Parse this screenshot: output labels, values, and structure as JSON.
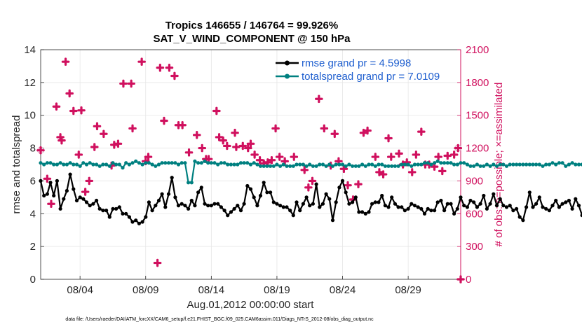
{
  "chart_data": {
    "type": "line",
    "title": "Tropics 146655 / 146764 = 99.926%",
    "subtitle": "SAT_V_WIND_COMPONENT @ 150 hPa",
    "xlabel": "Aug.01,2012 00:00:00 start",
    "ylabel": "rmse and totalspread",
    "y2label": "# of obs: o=possible; ×=assimilated",
    "footnote": "data file: /Users/raeder/DAI/ATM_forcXX/CAM6_setup/f.e21.FHIST_BGC.f09_025.CAM6assim.011/Diags_NTrS_2012-08/obs_diag_output.nc",
    "xlim": [
      0,
      32
    ],
    "ylim": [
      0,
      14
    ],
    "y2lim": [
      0,
      2100
    ],
    "x_tick_positions": [
      3,
      8,
      13,
      18,
      23,
      28
    ],
    "x_tick_labels": [
      "08/04",
      "08/09",
      "08/14",
      "08/19",
      "08/24",
      "08/29"
    ],
    "y_ticks": [
      0,
      2,
      4,
      6,
      8,
      10,
      12,
      14
    ],
    "y2_ticks": [
      0,
      300,
      600,
      900,
      1200,
      1500,
      1800,
      2100
    ],
    "grid": true,
    "legend_position": "top-right",
    "series": [
      {
        "name": "rmse grand pr = 4.5998",
        "color": "#000000",
        "axis": "left",
        "x_start": 0.0,
        "x_step": 0.25,
        "values": [
          6.0,
          5.1,
          5.2,
          5.9,
          5.1,
          6.0,
          4.3,
          4.9,
          5.4,
          6.4,
          5.5,
          4.8,
          5.0,
          4.9,
          4.7,
          4.5,
          4.6,
          4.8,
          4.3,
          4.2,
          4.2,
          3.8,
          4.3,
          4.3,
          4.4,
          4.0,
          4.0,
          3.8,
          3.5,
          3.6,
          3.4,
          3.5,
          3.8,
          4.7,
          4.2,
          4.5,
          4.8,
          5.2,
          4.4,
          5.2,
          6.2,
          5.0,
          4.5,
          4.6,
          4.5,
          4.3,
          4.8,
          4.5,
          5.3,
          5.6,
          4.6,
          4.5,
          4.5,
          4.6,
          4.6,
          4.4,
          4.2,
          3.9,
          4.1,
          4.3,
          4.5,
          4.2,
          4.6,
          5.7,
          5.5,
          5.0,
          4.5,
          5.1,
          5.9,
          5.3,
          5.3,
          4.7,
          4.6,
          4.5,
          4.4,
          4.4,
          4.2,
          3.9,
          4.7,
          4.2,
          4.6,
          5.0,
          4.5,
          4.6,
          5.8,
          4.4,
          4.6,
          5.2,
          4.9,
          3.6,
          4.7,
          5.6,
          6.0,
          5.3,
          4.6,
          4.7,
          5.0,
          4.1,
          4.1,
          4.0,
          4.1,
          4.6,
          4.7,
          4.7,
          5.1,
          4.5,
          4.4,
          5.0,
          4.6,
          4.4,
          4.4,
          4.2,
          4.3,
          4.6,
          4.5,
          4.4,
          4.3,
          4.0,
          4.3,
          4.2,
          4.2,
          4.7,
          4.8,
          4.2,
          4.6,
          4.6,
          4.0,
          4.3,
          5.0,
          4.5,
          4.4,
          4.8,
          4.7,
          4.4,
          4.6,
          5.1,
          4.3,
          4.6,
          5.2,
          4.5,
          4.9,
          4.5,
          4.4,
          4.5,
          4.2,
          4.3,
          3.8,
          3.6,
          4.4,
          5.3,
          4.4,
          4.6,
          5.0,
          4.4,
          4.3,
          4.2,
          4.5,
          4.8,
          4.4,
          4.6,
          4.7,
          4.8,
          4.3,
          4.9,
          4.5,
          3.9,
          4.4,
          4.2,
          4.5,
          4.7,
          4.1,
          4.4,
          4.2,
          4.3,
          4.2,
          3.9,
          4.5,
          4.5,
          4.6,
          4.2,
          4.4,
          4.6,
          4.7
        ]
      },
      {
        "name": "totalspread grand pr = 7.0109",
        "color": "#008080",
        "axis": "left",
        "x_start": 0.0,
        "x_step": 0.25,
        "values": [
          7.1,
          7.0,
          7.1,
          7.1,
          7.0,
          7.0,
          7.1,
          7.0,
          7.0,
          7.1,
          7.0,
          7.0,
          6.9,
          7.1,
          7.0,
          7.1,
          7.0,
          7.0,
          6.9,
          7.0,
          7.0,
          6.9,
          7.1,
          7.0,
          7.0,
          6.8,
          7.1,
          7.0,
          7.1,
          7.2,
          7.1,
          7.0,
          7.1,
          7.1,
          7.0,
          6.9,
          7.0,
          7.1,
          7.1,
          7.1,
          7.1,
          7.1,
          7.0,
          7.1,
          7.1,
          5.9,
          5.9,
          7.2,
          7.1,
          7.1,
          7.2,
          7.1,
          7.1,
          7.1,
          7.0,
          7.1,
          7.1,
          7.0,
          7.0,
          7.0,
          7.0,
          7.1,
          7.1,
          7.1,
          7.0,
          7.1,
          7.0,
          6.9,
          6.9,
          6.9,
          6.9,
          6.9,
          7.0,
          6.9,
          7.0,
          6.9,
          6.9,
          6.9,
          7.0,
          7.0,
          7.0,
          6.9,
          7.0,
          6.9,
          6.9,
          7.0,
          7.0,
          6.9,
          7.0,
          6.9,
          7.0,
          7.0,
          7.0,
          6.9,
          7.0,
          6.9,
          6.9,
          6.9,
          7.0,
          6.9,
          7.0,
          7.0,
          6.9,
          7.0,
          7.0,
          6.9,
          6.9,
          6.9,
          6.9,
          6.9,
          7.0,
          7.0,
          7.0,
          6.9,
          7.0,
          7.0,
          7.0,
          7.1,
          7.1,
          7.0,
          7.1,
          7.2,
          7.1,
          7.1,
          7.1,
          7.1,
          7.0,
          7.0,
          7.1,
          7.1,
          7.0,
          6.9,
          6.9,
          7.0,
          6.9,
          6.9,
          7.0,
          6.9,
          7.0,
          6.9,
          7.0,
          7.0,
          6.9,
          7.0,
          7.0,
          7.0,
          7.0,
          7.0,
          7.0,
          7.0,
          7.0,
          7.0,
          7.0,
          6.9,
          7.0,
          7.0,
          7.1,
          7.0,
          7.1,
          7.1,
          6.9,
          7.0,
          7.1,
          7.0,
          7.0,
          7.0,
          7.1,
          7.0,
          6.9,
          7.0,
          7.1,
          7.0,
          7.0,
          7.0,
          7.0,
          7.0,
          7.0,
          7.1,
          7.1,
          7.0,
          7.0,
          7.1,
          7.0,
          7.0,
          7.1,
          7.1,
          7.1
        ]
      }
    ],
    "obs_possible": {
      "name": "possible",
      "color": "#e0b0c8",
      "axis": "right",
      "points": [
        [
          0.0,
          1180
        ],
        [
          31.8,
          1200
        ]
      ]
    },
    "obs_assimilated": {
      "name": "assimilated",
      "color": "#d0105e",
      "axis": "right",
      "points": [
        [
          0.0,
          1180
        ],
        [
          0.5,
          920
        ],
        [
          0.8,
          690
        ],
        [
          1.2,
          1580
        ],
        [
          1.5,
          1300
        ],
        [
          1.6,
          1270
        ],
        [
          1.9,
          1990
        ],
        [
          2.2,
          1700
        ],
        [
          2.5,
          1540
        ],
        [
          2.9,
          1140
        ],
        [
          3.1,
          1545
        ],
        [
          3.4,
          800
        ],
        [
          3.7,
          900
        ],
        [
          4.1,
          1210
        ],
        [
          4.3,
          1400
        ],
        [
          4.8,
          1330
        ],
        [
          5.4,
          1040
        ],
        [
          5.6,
          1230
        ],
        [
          5.9,
          1240
        ],
        [
          6.3,
          1790
        ],
        [
          6.9,
          1790
        ],
        [
          7.0,
          1380
        ],
        [
          7.7,
          1990
        ],
        [
          8.0,
          1080
        ],
        [
          8.2,
          1120
        ],
        [
          8.9,
          150
        ],
        [
          9.1,
          1935
        ],
        [
          9.4,
          1450
        ],
        [
          9.8,
          1935
        ],
        [
          10.2,
          1860
        ],
        [
          10.5,
          1410
        ],
        [
          10.8,
          1410
        ],
        [
          11.3,
          1160
        ],
        [
          11.9,
          1320
        ],
        [
          12.3,
          1200
        ],
        [
          12.6,
          1100
        ],
        [
          12.8,
          1100
        ],
        [
          13.4,
          1540
        ],
        [
          13.6,
          1300
        ],
        [
          13.9,
          1270
        ],
        [
          14.2,
          1220
        ],
        [
          14.8,
          1340
        ],
        [
          14.9,
          1210
        ],
        [
          15.4,
          1220
        ],
        [
          15.8,
          1200
        ],
        [
          16.0,
          1240
        ],
        [
          16.3,
          1140
        ],
        [
          16.7,
          1090
        ],
        [
          17.0,
          1060
        ],
        [
          17.3,
          1070
        ],
        [
          17.6,
          1090
        ],
        [
          17.9,
          1380
        ],
        [
          18.2,
          1120
        ],
        [
          18.6,
          1080
        ],
        [
          19.3,
          1120
        ],
        [
          20.1,
          1000
        ],
        [
          20.4,
          840
        ],
        [
          20.7,
          900
        ],
        [
          21.2,
          1650
        ],
        [
          21.6,
          1380
        ],
        [
          22.1,
          1040
        ],
        [
          22.4,
          1330
        ],
        [
          22.7,
          1080
        ],
        [
          23.1,
          1010
        ],
        [
          23.4,
          860
        ],
        [
          23.8,
          730
        ],
        [
          24.2,
          870
        ],
        [
          24.6,
          1340
        ],
        [
          24.9,
          1360
        ],
        [
          25.5,
          1120
        ],
        [
          25.8,
          980
        ],
        [
          26.1,
          960
        ],
        [
          26.5,
          1290
        ],
        [
          26.7,
          1120
        ],
        [
          27.3,
          1150
        ],
        [
          27.6,
          1050
        ],
        [
          27.9,
          1070
        ],
        [
          28.3,
          980
        ],
        [
          28.6,
          1140
        ],
        [
          29.0,
          1350
        ],
        [
          29.3,
          1050
        ],
        [
          29.6,
          1050
        ],
        [
          30.0,
          1030
        ],
        [
          30.3,
          1120
        ],
        [
          30.6,
          990
        ],
        [
          31.0,
          1130
        ],
        [
          31.5,
          1140
        ],
        [
          31.8,
          1200
        ],
        [
          32.0,
          0
        ]
      ]
    }
  }
}
